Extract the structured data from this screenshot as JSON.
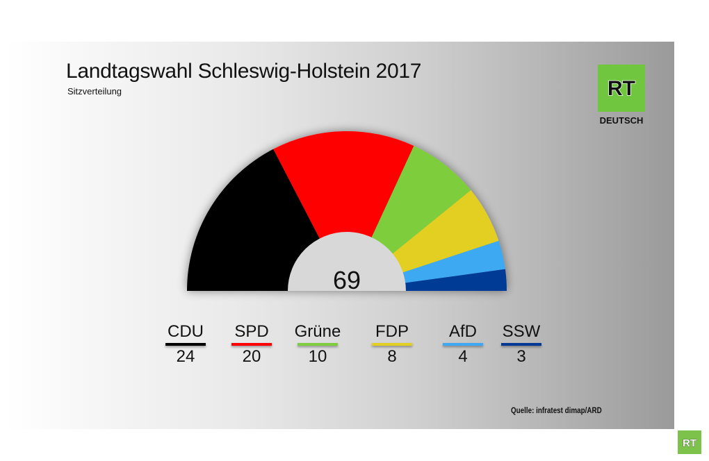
{
  "header": {
    "title": "Landtagswahl Schleswig-Holstein 2017",
    "subtitle": "Sitzverteilung"
  },
  "logo": {
    "text": "RT",
    "subtext": "DEUTSCH",
    "color": "#71c63f"
  },
  "footer": {
    "source": "Quelle: infratest dimap/ARD"
  },
  "chart_data": {
    "type": "pie",
    "subtype": "parliament-semicircle",
    "title": "Landtagswahl Schleswig-Holstein 2017",
    "subtitle": "Sitzverteilung",
    "total": 69,
    "total_label": "69",
    "categories": [
      "CDU",
      "SPD",
      "Grüne",
      "FDP",
      "AfD",
      "SSW"
    ],
    "values": [
      24,
      20,
      10,
      8,
      4,
      3
    ],
    "value_labels": [
      "24",
      "20",
      "10",
      "8",
      "4",
      "3"
    ],
    "colors": [
      "#000000",
      "#ff0000",
      "#7ecd3e",
      "#e2cf22",
      "#3ea9f2",
      "#003a96"
    ]
  }
}
